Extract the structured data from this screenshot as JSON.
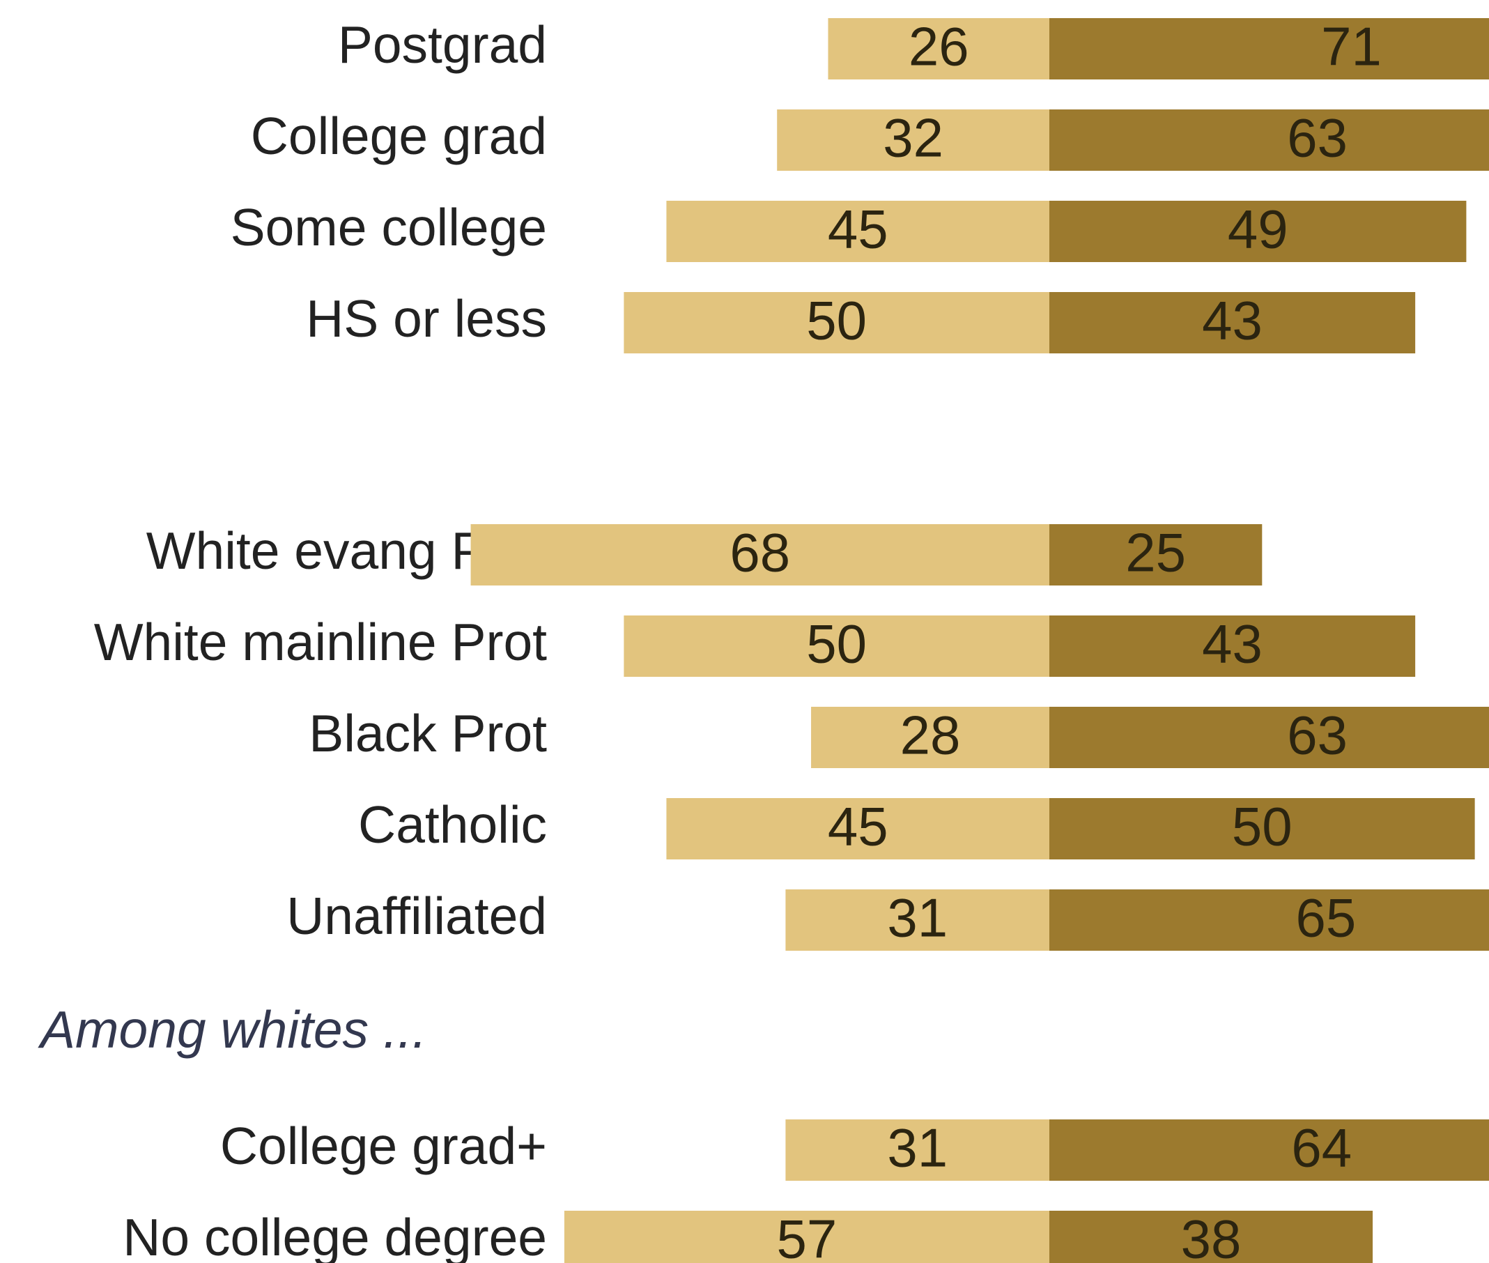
{
  "colors": {
    "left_bar": "#e2c47e",
    "right_bar": "#9c7a2e",
    "background": "#ffffff"
  },
  "chart_data": {
    "type": "bar",
    "orientation": "horizontal",
    "layout": "diverging",
    "title": "",
    "xlabel": "",
    "ylabel": "",
    "grid": false,
    "legend": "none",
    "groups": [
      {
        "heading": "",
        "categories": [
          "Postgrad",
          "College grad",
          "Some college",
          "HS or less"
        ],
        "left_values": [
          26,
          32,
          45,
          50
        ],
        "right_values": [
          71,
          63,
          49,
          43
        ]
      },
      {
        "heading": "",
        "categories": [
          "White evang Prot",
          "White mainline Prot",
          "Black Prot",
          "Catholic",
          "Unaffiliated"
        ],
        "left_values": [
          68,
          50,
          28,
          45,
          31
        ],
        "right_values": [
          25,
          43,
          63,
          50,
          65
        ]
      },
      {
        "heading": "Among whites ...",
        "categories": [
          "College grad+",
          "No college degree"
        ],
        "left_values": [
          31,
          57
        ],
        "right_values": [
          64,
          38
        ]
      }
    ]
  }
}
